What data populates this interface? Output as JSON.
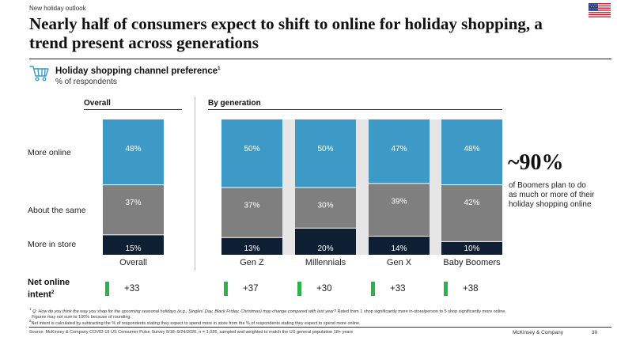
{
  "eyebrow": "New holiday outlook",
  "headline": "Nearly half of consumers expect to shift to online for holiday shopping, a trend present across generations",
  "chart_title": "Holiday shopping channel preference",
  "chart_title_sup": "1",
  "chart_subtitle": "% of respondents",
  "sections": {
    "overall": "Overall",
    "by_generation": "By generation"
  },
  "row_labels": [
    "More online",
    "About the same",
    "More in store"
  ],
  "colors": {
    "online": "#3d9ac6",
    "same": "#7f7f7f",
    "store": "#0f1f33",
    "net_bar": "#2db34a",
    "bridge": "#e6e6e6"
  },
  "chart_data": {
    "type": "bar",
    "stacked": true,
    "normalized": true,
    "categories": [
      "Overall",
      "Gen Z",
      "Millennials",
      "Gen X",
      "Baby Boomers"
    ],
    "series": [
      {
        "name": "More online",
        "values": [
          48,
          50,
          50,
          47,
          48
        ]
      },
      {
        "name": "About the same",
        "values": [
          37,
          37,
          30,
          39,
          42
        ]
      },
      {
        "name": "More in store",
        "values": [
          15,
          13,
          20,
          14,
          10
        ]
      }
    ],
    "value_labels": {
      "online": [
        "48%",
        "50%",
        "50%",
        "47%",
        "48%"
      ],
      "same": [
        "37%",
        "37%",
        "30%",
        "39%",
        "42%"
      ],
      "store": [
        "15%",
        "13%",
        "20%",
        "14%",
        "10%"
      ]
    },
    "net_online_intent": [
      "+33",
      "+37",
      "+30",
      "+33",
      "+38"
    ]
  },
  "net_label_line1": "Net online",
  "net_label_line2": "intent",
  "net_label_sup": "2",
  "callout": {
    "number": "~90%",
    "text": "of Boomers plan to do as much or more of their holiday shopping online"
  },
  "footnotes": {
    "f1_num": "1",
    "f1_question": "Q: How do you think the way you shop for the upcoming seasonal holidays (e.g., Singles' Day, Black Friday, Christmas) may change compared with last year?",
    "f1_rest": "Rated from 1 shop significantly more in-store/person to 5 shop significantly more online.",
    "f1_line2": "Figures may not sum to 100% because of rounding.",
    "f2_num": "2",
    "f2_text": "Net intent is calculated by subtracting the % of respondents stating they expect to spend more in store from the % of respondents stating they expect to spend more online."
  },
  "source": "Source: McKinsey & Company COVID-19 US Consumer Pulse Survey 9/18–9/24/2020, n = 1,026, sampled and weighted to match the US general population 18+ years",
  "brand": "McKinsey & Company",
  "page_number": "30"
}
